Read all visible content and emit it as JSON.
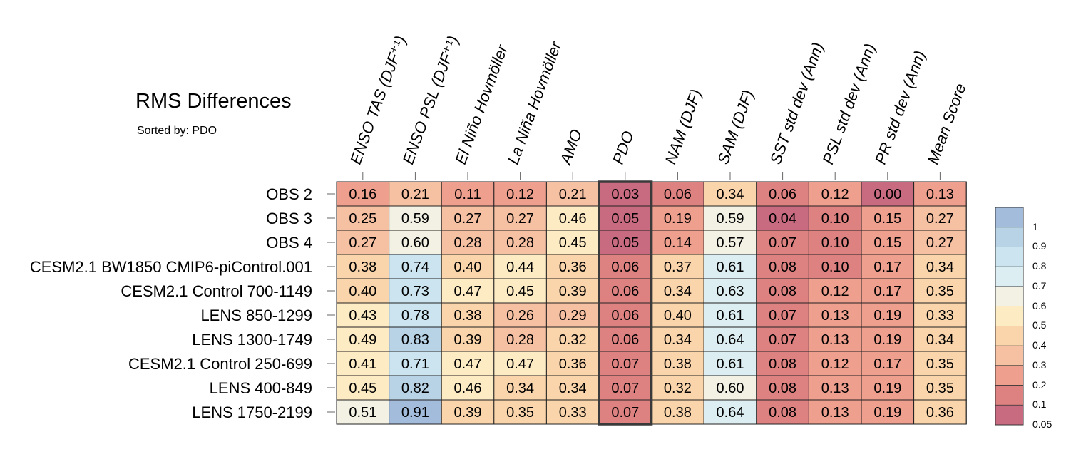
{
  "title": "RMS Differences",
  "subtitle": "Sorted by: PDO",
  "chart_data": {
    "type": "heatmap",
    "sorted_by": "PDO",
    "columns": [
      "ENSO TAS (DJF⁺¹)",
      "ENSO PSL (DJF⁺¹)",
      "El Niño Hovmöller",
      "La Niña Hovmöller",
      "AMO",
      "PDO",
      "NAM (DJF)",
      "SAM (DJF)",
      "SST std dev (Ann)",
      "PSL std dev (Ann)",
      "PR std dev (Ann)",
      "Mean Score"
    ],
    "rows": [
      "OBS 2",
      "OBS 3",
      "OBS 4",
      "CESM2.1 BW1850 CMIP6-piControl.001",
      "CESM2.1 Control 700-1149",
      "LENS 850-1299",
      "LENS 1300-1749",
      "CESM2.1 Control 250-699",
      "LENS 400-849",
      "LENS 1750-2199"
    ],
    "values": [
      [
        "0.16",
        "0.21",
        "0.11",
        "0.12",
        "0.21",
        "0.03",
        "0.06",
        "0.34",
        "0.06",
        "0.12",
        "0.00",
        "0.13"
      ],
      [
        "0.25",
        "0.59",
        "0.27",
        "0.27",
        "0.46",
        "0.05",
        "0.19",
        "0.59",
        "0.04",
        "0.10",
        "0.15",
        "0.27"
      ],
      [
        "0.27",
        "0.60",
        "0.28",
        "0.28",
        "0.45",
        "0.05",
        "0.14",
        "0.57",
        "0.07",
        "0.10",
        "0.15",
        "0.27"
      ],
      [
        "0.38",
        "0.74",
        "0.40",
        "0.44",
        "0.36",
        "0.06",
        "0.37",
        "0.61",
        "0.08",
        "0.10",
        "0.17",
        "0.34"
      ],
      [
        "0.40",
        "0.73",
        "0.47",
        "0.45",
        "0.39",
        "0.06",
        "0.34",
        "0.63",
        "0.08",
        "0.12",
        "0.17",
        "0.35"
      ],
      [
        "0.43",
        "0.78",
        "0.38",
        "0.26",
        "0.29",
        "0.06",
        "0.40",
        "0.61",
        "0.07",
        "0.13",
        "0.19",
        "0.33"
      ],
      [
        "0.49",
        "0.83",
        "0.39",
        "0.28",
        "0.32",
        "0.06",
        "0.34",
        "0.64",
        "0.07",
        "0.13",
        "0.19",
        "0.34"
      ],
      [
        "0.41",
        "0.71",
        "0.47",
        "0.47",
        "0.36",
        "0.07",
        "0.38",
        "0.61",
        "0.08",
        "0.12",
        "0.17",
        "0.35"
      ],
      [
        "0.45",
        "0.82",
        "0.46",
        "0.34",
        "0.34",
        "0.07",
        "0.32",
        "0.60",
        "0.08",
        "0.13",
        "0.19",
        "0.35"
      ],
      [
        "0.51",
        "0.91",
        "0.39",
        "0.35",
        "0.33",
        "0.07",
        "0.38",
        "0.64",
        "0.08",
        "0.13",
        "0.19",
        "0.36"
      ]
    ],
    "highlight_column": "PDO",
    "colorbar": {
      "labels": [
        "1",
        "0.9",
        "0.8",
        "0.7",
        "0.6",
        "0.5",
        "0.4",
        "0.3",
        "0.2",
        "0.1",
        "0.05"
      ],
      "levels": [
        0,
        0.05,
        0.1,
        0.2,
        0.3,
        0.4,
        0.5,
        0.6,
        0.7,
        0.8,
        0.9,
        1.0
      ],
      "colors": [
        "#c96b80",
        "#dd8281",
        "#ee9f8e",
        "#f6c0a2",
        "#fad5ab",
        "#fdebc4",
        "#f2f1e4",
        "#ddeef3",
        "#cbe4ef",
        "#b8d2e6",
        "#a4bcdb"
      ]
    }
  }
}
